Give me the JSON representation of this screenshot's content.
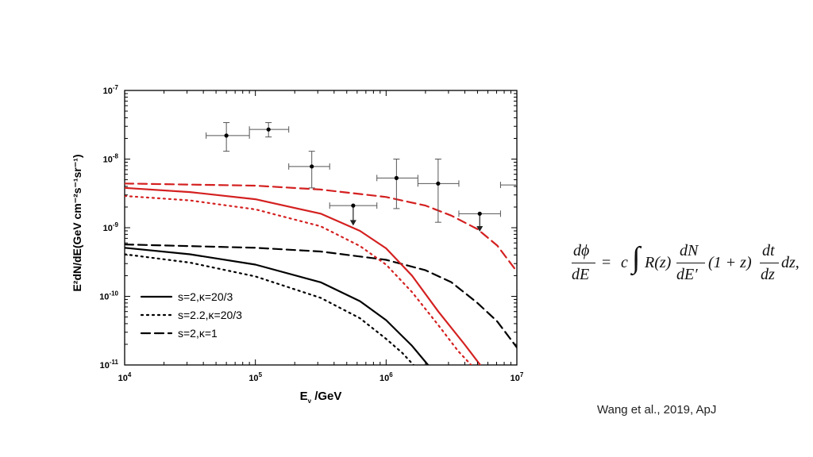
{
  "chart_data": {
    "type": "line",
    "xlabel_main": "E",
    "xlabel_sub": "ν",
    "xlabel_rest": " /GeV",
    "ylabel": "E²dN/dE(GeV cm⁻²s⁻¹sr⁻¹)",
    "x_scale": "log",
    "y_scale": "log",
    "xlim": [
      10000,
      10000000
    ],
    "ylim": [
      1e-11,
      1e-07
    ],
    "x_ticks": [
      {
        "value": 10000,
        "base": "10",
        "exp": "4"
      },
      {
        "value": 100000,
        "base": "10",
        "exp": "5"
      },
      {
        "value": 1000000,
        "base": "10",
        "exp": "6"
      },
      {
        "value": 10000000,
        "base": "10",
        "exp": "7"
      }
    ],
    "y_ticks": [
      {
        "value": 1e-11,
        "base": "10",
        "exp": "-11"
      },
      {
        "value": 1e-10,
        "base": "10",
        "exp": "-10"
      },
      {
        "value": 1e-09,
        "base": "10",
        "exp": "-9"
      },
      {
        "value": 1e-08,
        "base": "10",
        "exp": "-8"
      },
      {
        "value": 1e-07,
        "base": "10",
        "exp": "-7"
      }
    ],
    "legend_position": "bottom-left",
    "series": [
      {
        "name": "s=2,κ=20/3",
        "color": "#000000",
        "dash": "solid",
        "in_legend": true,
        "points": [
          [
            10000,
            5.1e-10
          ],
          [
            31600,
            4.1e-10
          ],
          [
            100000,
            2.9e-10
          ],
          [
            316000,
            1.6e-10
          ],
          [
            631000,
            8.5e-11
          ],
          [
            1000000,
            4.5e-11
          ],
          [
            1580000,
            1.9e-11
          ],
          [
            2090000,
            1e-11
          ]
        ]
      },
      {
        "name": "s=2.2,κ=20/3",
        "color": "#000000",
        "dash": "dotted",
        "in_legend": true,
        "points": [
          [
            10000,
            4.1e-10
          ],
          [
            31600,
            3.1e-10
          ],
          [
            100000,
            1.95e-10
          ],
          [
            316000,
            9.5e-11
          ],
          [
            631000,
            4.8e-11
          ],
          [
            1000000,
            2.4e-11
          ],
          [
            1330000,
            1.5e-11
          ],
          [
            1620000,
            1e-11
          ]
        ]
      },
      {
        "name": "s=2,κ=1",
        "color": "#000000",
        "dash": "dashed",
        "in_legend": true,
        "points": [
          [
            10000,
            5.7e-10
          ],
          [
            100000,
            5.1e-10
          ],
          [
            316000,
            4.5e-10
          ],
          [
            1000000,
            3.4e-10
          ],
          [
            2000000,
            2.4e-10
          ],
          [
            3160000,
            1.6e-10
          ],
          [
            5000000,
            8e-11
          ],
          [
            7080000,
            4.3e-11
          ],
          [
            10000000,
            1.8e-11
          ]
        ]
      },
      {
        "name": "",
        "color": "#d42020",
        "dash": "solid",
        "in_legend": false,
        "points": [
          [
            10000,
            3.8e-09
          ],
          [
            31600,
            3.3e-09
          ],
          [
            100000,
            2.6e-09
          ],
          [
            316000,
            1.6e-09
          ],
          [
            631000,
            9e-10
          ],
          [
            1000000,
            5e-10
          ],
          [
            1580000,
            2e-10
          ],
          [
            2510000,
            6e-11
          ],
          [
            3980000,
            2e-11
          ],
          [
            5250000,
            1e-11
          ]
        ]
      },
      {
        "name": "",
        "color": "#d42020",
        "dash": "dotted",
        "in_legend": false,
        "points": [
          [
            10000,
            2.9e-09
          ],
          [
            31600,
            2.5e-09
          ],
          [
            100000,
            1.85e-09
          ],
          [
            316000,
            1.05e-09
          ],
          [
            631000,
            5.4e-10
          ],
          [
            1000000,
            2.9e-10
          ],
          [
            1580000,
            1.15e-10
          ],
          [
            2510000,
            3.8e-11
          ],
          [
            3550000,
            1.6e-11
          ],
          [
            4470000,
            1e-11
          ]
        ]
      },
      {
        "name": "",
        "color": "#d42020",
        "dash": "dashed",
        "in_legend": false,
        "points": [
          [
            10000,
            4.4e-09
          ],
          [
            100000,
            4.1e-09
          ],
          [
            316000,
            3.6e-09
          ],
          [
            1000000,
            2.8e-09
          ],
          [
            2000000,
            2.1e-09
          ],
          [
            3160000,
            1.5e-09
          ],
          [
            5010000,
            9.5e-10
          ],
          [
            7080000,
            5.5e-10
          ],
          [
            10000000,
            2.3e-10
          ]
        ]
      }
    ],
    "points": [
      {
        "x": 60000,
        "y": 2.2e-08,
        "xlo": 42000,
        "xhi": 90000,
        "ylo": 1.3e-08,
        "yhi": 3.4e-08,
        "upper_limit": false
      },
      {
        "x": 126000,
        "y": 2.7e-08,
        "xlo": 90000,
        "xhi": 180000,
        "ylo": 2.1e-08,
        "yhi": 3.4e-08,
        "upper_limit": false
      },
      {
        "x": 270000,
        "y": 7.8e-09,
        "xlo": 180000,
        "xhi": 370000,
        "ylo": 3.8e-09,
        "yhi": 1.3e-08,
        "upper_limit": false
      },
      {
        "x": 560000,
        "y": 2.1e-09,
        "xlo": 370000,
        "xhi": 850000,
        "ylo": 1.1e-09,
        "yhi": null,
        "upper_limit": true
      },
      {
        "x": 1200000,
        "y": 5.3e-09,
        "xlo": 850000,
        "xhi": 1750000,
        "ylo": 1.9e-09,
        "yhi": 1e-08,
        "upper_limit": false
      },
      {
        "x": 2500000,
        "y": 4.4e-09,
        "xlo": 1750000,
        "xhi": 3600000,
        "ylo": 1.2e-09,
        "yhi": 1e-08,
        "upper_limit": false
      },
      {
        "x": 5200000,
        "y": 1.6e-09,
        "xlo": 3600000,
        "xhi": 7500000,
        "ylo": 9e-10,
        "yhi": null,
        "upper_limit": true
      },
      {
        "x": null,
        "y": 4.2e-09,
        "xlo": 7500000,
        "xhi": 10000000,
        "ylo": null,
        "yhi": null,
        "upper_limit": false
      }
    ]
  },
  "equation": {
    "lhs_num": "dϕ",
    "lhs_den": "dE",
    "equals": "=",
    "c": "c",
    "integral": "∫",
    "rz": "R(z)",
    "dn_num": "dN",
    "dn_den": "dE′",
    "one_plus_z": "(1 + z)",
    "dt_num": "dt",
    "dt_den": "dz",
    "tail": "dz,"
  },
  "citation": "Wang et al., 2019, ApJ"
}
